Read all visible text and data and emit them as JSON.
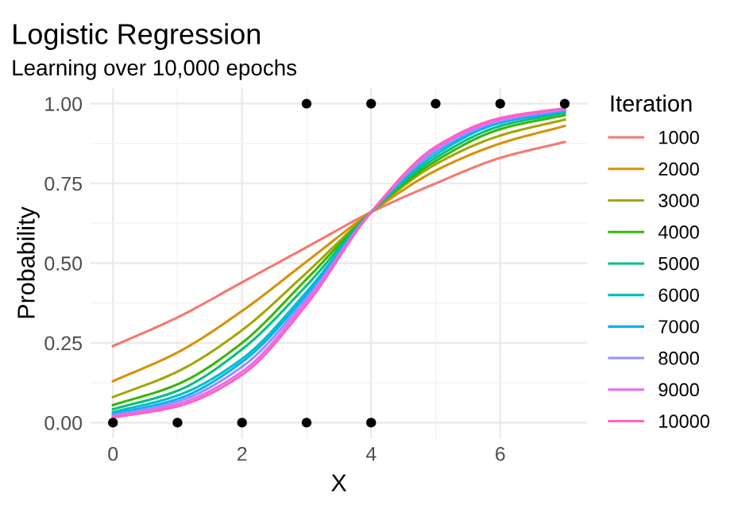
{
  "chart_data": {
    "type": "line",
    "title": "Logistic Regression",
    "subtitle": "Learning over 10,000 epochs",
    "xlabel": "X",
    "ylabel": "Probability",
    "legend_title": "Iteration",
    "x": [
      0,
      1,
      2,
      3,
      4,
      5,
      6,
      7
    ],
    "series": [
      {
        "name": "1000",
        "color": "#f8766d",
        "values": [
          0.24,
          0.33,
          0.44,
          0.55,
          0.66,
          0.75,
          0.83,
          0.88
        ]
      },
      {
        "name": "2000",
        "color": "#d89000",
        "values": [
          0.13,
          0.22,
          0.35,
          0.505,
          0.66,
          0.79,
          0.875,
          0.93
        ]
      },
      {
        "name": "3000",
        "color": "#a3a500",
        "values": [
          0.08,
          0.16,
          0.29,
          0.47,
          0.66,
          0.81,
          0.9,
          0.95
        ]
      },
      {
        "name": "4000",
        "color": "#39b600",
        "values": [
          0.055,
          0.12,
          0.25,
          0.45,
          0.66,
          0.82,
          0.92,
          0.964
        ]
      },
      {
        "name": "5000",
        "color": "#00bf7d",
        "values": [
          0.042,
          0.1,
          0.23,
          0.43,
          0.66,
          0.83,
          0.93,
          0.971
        ]
      },
      {
        "name": "6000",
        "color": "#00bfc4",
        "values": [
          0.033,
          0.085,
          0.2,
          0.41,
          0.66,
          0.84,
          0.94,
          0.975
        ]
      },
      {
        "name": "7000",
        "color": "#00b0f6",
        "values": [
          0.027,
          0.074,
          0.19,
          0.4,
          0.66,
          0.85,
          0.94,
          0.979
        ]
      },
      {
        "name": "8000",
        "color": "#9590ff",
        "values": [
          0.023,
          0.066,
          0.175,
          0.39,
          0.66,
          0.853,
          0.946,
          0.981
        ]
      },
      {
        "name": "9000",
        "color": "#e76bf3",
        "values": [
          0.019,
          0.058,
          0.16,
          0.38,
          0.66,
          0.86,
          0.95,
          0.984
        ]
      },
      {
        "name": "10000",
        "color": "#ff62bc",
        "values": [
          0.016,
          0.051,
          0.15,
          0.37,
          0.66,
          0.865,
          0.955,
          0.986
        ]
      },
      {
        "type": "scatter",
        "color": "#000000",
        "x": [
          0,
          1,
          2,
          3,
          4,
          3,
          4,
          5,
          6,
          7
        ],
        "values": [
          0,
          0,
          0,
          0,
          0,
          1,
          1,
          1,
          1,
          1
        ]
      }
    ],
    "xlim": [
      -0.35,
      7.35
    ],
    "xticks": [
      0,
      2,
      4,
      6
    ],
    "ylim": [
      -0.05,
      1.05
    ],
    "yticks": [
      {
        "value": 0,
        "label": "0.00"
      },
      {
        "value": 0.25,
        "label": "0.25"
      },
      {
        "value": 0.5,
        "label": "0.50"
      },
      {
        "value": 0.75,
        "label": "0.75"
      },
      {
        "value": 1,
        "label": "1.00"
      }
    ],
    "grid": true,
    "legend": "right",
    "line_style": "solid"
  }
}
